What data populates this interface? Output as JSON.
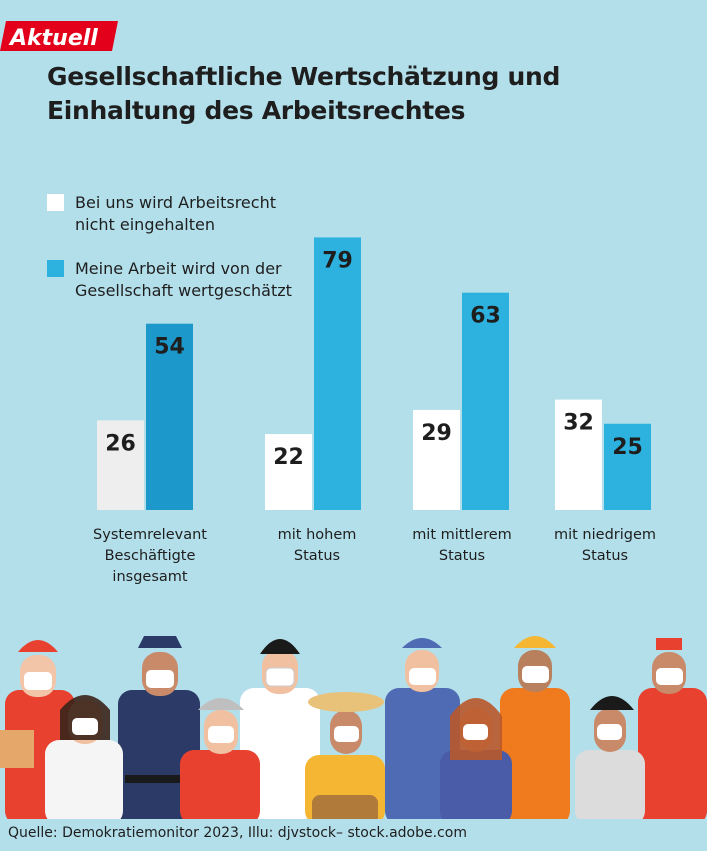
{
  "logo": {
    "text": "Aktuell"
  },
  "title": "Gesellschaftliche Wertschätzung und Einhaltung des Arbeitsrechtes",
  "legend": [
    {
      "label_line1": "Bei uns wird Arbeitsrecht",
      "label_line2": "nicht eingehalten",
      "color": "#ffffff"
    },
    {
      "label_line1": "Meine Arbeit wird von der",
      "label_line2": "Gesellschaft wertgeschätzt",
      "color": "#2db2df"
    }
  ],
  "chart_data": {
    "type": "bar",
    "categories": [
      [
        "Systemrelevant",
        "Beschäftigte insgesamt"
      ],
      [
        "mit hohem",
        "Status"
      ],
      [
        "mit mittlerem",
        "Status"
      ],
      [
        "mit niedrigem",
        "Status"
      ]
    ],
    "series": [
      {
        "name": "Bei uns wird Arbeitsrecht nicht eingehalten",
        "values": [
          26,
          22,
          29,
          32
        ],
        "color": "#ffffff"
      },
      {
        "name": "Meine Arbeit wird von der Gesellschaft wertgeschätzt",
        "values": [
          54,
          79,
          63,
          25
        ],
        "color": "#2db2df"
      }
    ],
    "first_bar_colors": [
      "#eeeeee",
      "#1c98ca"
    ],
    "ylim": [
      0,
      100
    ],
    "grid": false,
    "legend_position": "top-left",
    "title": "Gesellschaftliche Wertschätzung und Einhaltung des Arbeitsrechtes"
  },
  "source": "Quelle: Demokratiemonitor 2023, Illu: djvstock– stock.adobe.com",
  "colors": {
    "background": "#b3dfeb",
    "accent": "#e3001b",
    "text": "#1e1e1e"
  }
}
